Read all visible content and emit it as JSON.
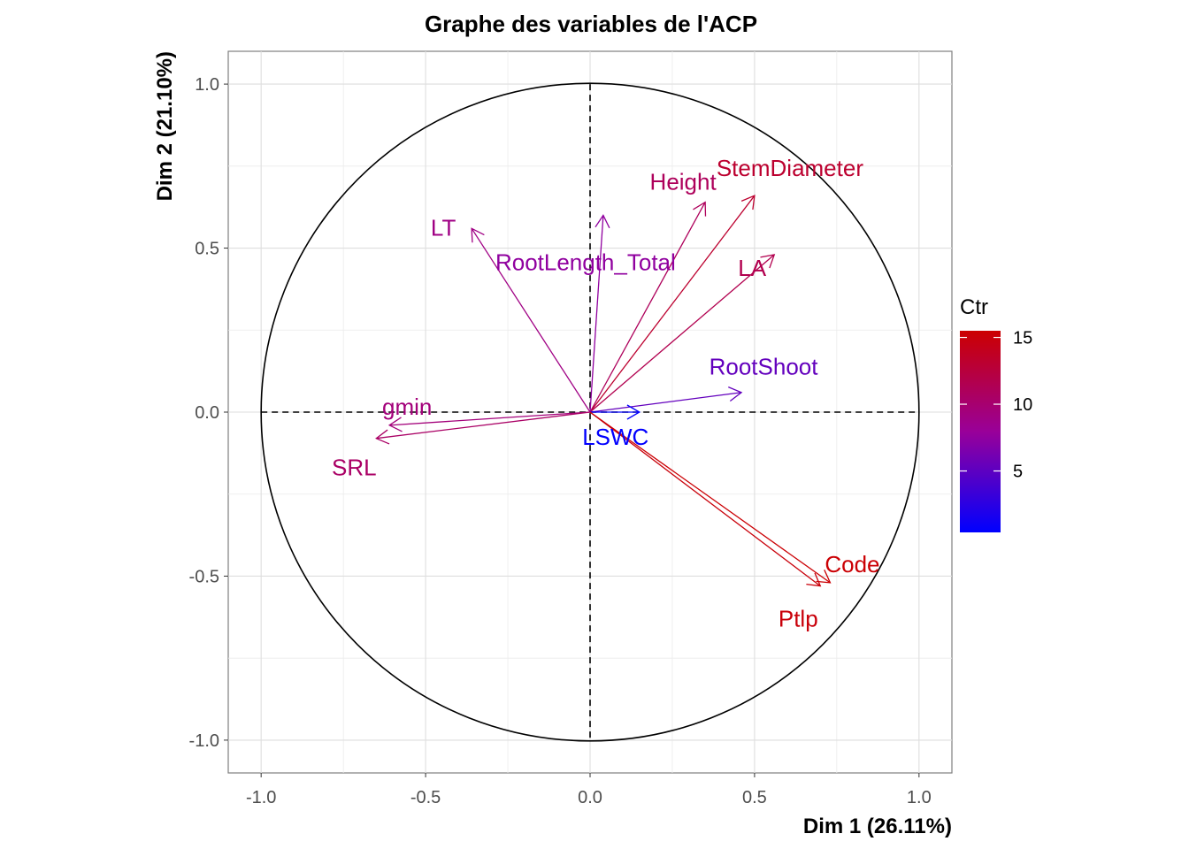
{
  "chart_data": {
    "type": "pca-correlation-circle",
    "title": "Graphe des variables de l'ACP",
    "xlabel": "Dim 1 (26.11%)",
    "ylabel": "Dim 2 (21.10%)",
    "xlim": [
      -1.1,
      1.1
    ],
    "ylim": [
      -1.1,
      1.1
    ],
    "xticks": [
      -1.0,
      -0.5,
      0.0,
      0.5,
      1.0
    ],
    "xtick_labels": [
      "-1.0",
      "-0.5",
      "0.0",
      "0.5",
      "1.0"
    ],
    "yticks": [
      -1.0,
      -0.5,
      0.0,
      0.5,
      1.0
    ],
    "ytick_labels": [
      "-1.0",
      "-0.5",
      "0.0",
      "0.5",
      "1.0"
    ],
    "grid": true,
    "unit_circle": true,
    "legend": {
      "title": "Ctr",
      "position": "right",
      "type": "gradient",
      "range": [
        0.4,
        15.5
      ],
      "ticks": [
        5,
        10,
        15
      ],
      "tick_labels": [
        "5",
        "10",
        "15"
      ],
      "colors": [
        "#0000ff",
        "#990099",
        "#cc0000"
      ]
    },
    "variables": [
      {
        "name": "StemDiameter",
        "x": 0.5,
        "y": 0.66,
        "ctr": 13.2
      },
      {
        "name": "Height",
        "x": 0.35,
        "y": 0.64,
        "ctr": 11.0
      },
      {
        "name": "LA",
        "x": 0.56,
        "y": 0.48,
        "ctr": 11.6
      },
      {
        "name": "LT",
        "x": -0.36,
        "y": 0.56,
        "ctr": 9.0
      },
      {
        "name": "RootLength_Total",
        "x": 0.04,
        "y": 0.6,
        "ctr": 7.5
      },
      {
        "name": "RootShoot",
        "x": 0.46,
        "y": 0.06,
        "ctr": 5.3
      },
      {
        "name": "gmin",
        "x": -0.61,
        "y": -0.04,
        "ctr": 9.5
      },
      {
        "name": "SRL",
        "x": -0.65,
        "y": -0.08,
        "ctr": 10.5
      },
      {
        "name": "LSWC",
        "x": 0.15,
        "y": 0.0,
        "ctr": 0.5
      },
      {
        "name": "Code",
        "x": 0.73,
        "y": -0.52,
        "ctr": 15.3
      },
      {
        "name": "Ptlp",
        "x": 0.7,
        "y": -0.53,
        "ctr": 15.0
      }
    ]
  }
}
